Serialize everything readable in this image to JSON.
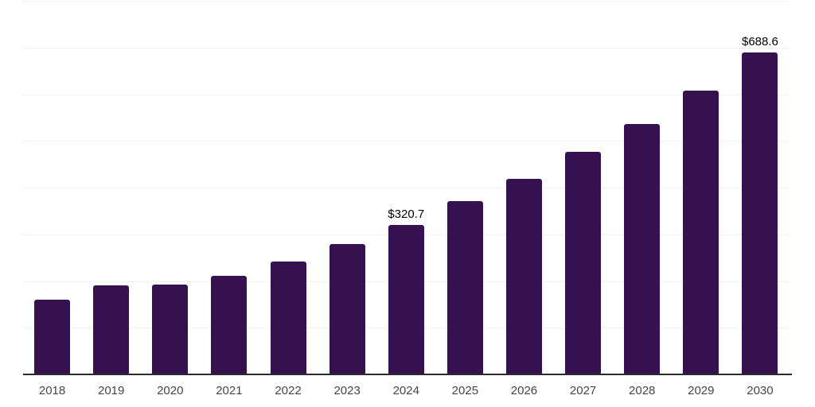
{
  "chart_data": {
    "type": "bar",
    "title": "",
    "xlabel": "",
    "ylabel": "",
    "categories": [
      "2018",
      "2019",
      "2020",
      "2021",
      "2022",
      "2023",
      "2024",
      "2025",
      "2026",
      "2027",
      "2028",
      "2029",
      "2030"
    ],
    "values": [
      159.4,
      190.0,
      191.9,
      210.5,
      241.7,
      278.6,
      320.7,
      370.9,
      418.0,
      475.8,
      536.4,
      608.3,
      688.6
    ],
    "data_labels": [
      null,
      null,
      null,
      null,
      null,
      null,
      "$320.7",
      null,
      null,
      null,
      null,
      null,
      "$688.6"
    ],
    "currency_prefix": "$",
    "ylim": [
      0,
      800
    ],
    "gridline_step": 100,
    "grid": "horizontal-only",
    "y_axis_tick_labels": "none",
    "legend": "none",
    "colors": {
      "bar": "#361150",
      "data_label": "#000000",
      "x_tick_label": "#454545",
      "axis_line": "#2b2b2b",
      "gridline": "#f0f0f0",
      "background": "#ffffff"
    }
  }
}
